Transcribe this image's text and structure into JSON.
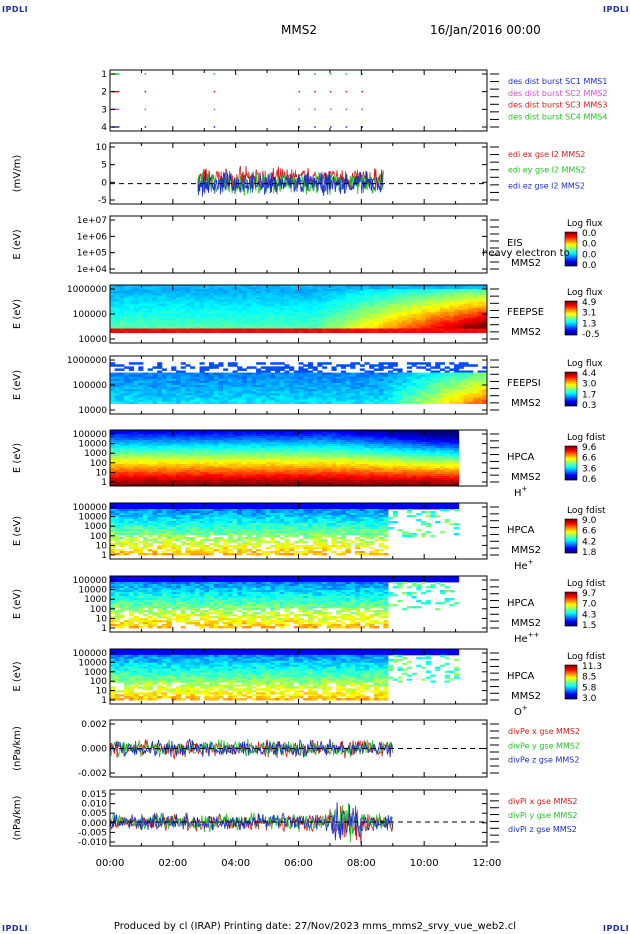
{
  "header": {
    "corner_label": "IPDLI",
    "spacecraft": "MMS2",
    "date": "16/Jan/2016 00:00"
  },
  "footer": "Produced by cl (IRAP)   Printing date: 27/Nov/2023   mms_mms2_srvy_vue_web2.cl",
  "chart_data": [
    {
      "type": "scatter",
      "id": "burst",
      "ylabel": "",
      "yticks": [
        "1",
        "2",
        "3",
        "4"
      ],
      "legend": [
        {
          "label": "des dist burst SC1 MMS1",
          "color": "#1c2fc8"
        },
        {
          "label": "des dist burst SC2 MMS2",
          "color": "#d24fd2"
        },
        {
          "label": "des dist burst SC3 MMS3",
          "color": "#d21c1c"
        },
        {
          "label": "des dist burst SC4 MMS4",
          "color": "#22c322"
        }
      ]
    },
    {
      "type": "line",
      "id": "efield",
      "ylabel": "(mV/m)",
      "yticks": [
        "10",
        "5",
        "0",
        "-5"
      ],
      "ylim": [
        -5,
        10
      ],
      "legend": [
        {
          "label": "edi ex gse l2 MMS2",
          "color": "#d21c1c"
        },
        {
          "label": "edi ey gse l2 MMS2",
          "color": "#22c322"
        },
        {
          "label": "edi ez gse l2 MMS2",
          "color": "#1c2fc8"
        }
      ]
    },
    {
      "type": "heatmap",
      "id": "eis",
      "ylabel": "E (eV)",
      "yticks": [
        "1e+07",
        "1e+06",
        "1e+05",
        "1e+04"
      ],
      "instrument": [
        "EIS",
        "MMS2"
      ],
      "overlay": "heavy electron to",
      "colorbar_title": "Log flux",
      "colorbar_ticks": [
        "0.0",
        "0.0",
        "0.0",
        "0.0"
      ]
    },
    {
      "type": "heatmap",
      "id": "feepse",
      "ylabel": "E (eV)",
      "yticks": [
        "1000000",
        "100000",
        "10000"
      ],
      "instrument": [
        "FEEPSE",
        "MMS2"
      ],
      "colorbar_title": "Log flux",
      "colorbar_ticks": [
        "4.9",
        "3.1",
        "1.3",
        "-0.5"
      ]
    },
    {
      "type": "heatmap",
      "id": "feepsi",
      "ylabel": "E (eV)",
      "yticks": [
        "1000000",
        "100000",
        "10000"
      ],
      "instrument": [
        "FEEPSI",
        "MMS2"
      ],
      "colorbar_title": "Log flux",
      "colorbar_ticks": [
        "4.4",
        "3.0",
        "1.7",
        "0.3"
      ]
    },
    {
      "type": "heatmap",
      "id": "hpca_h",
      "ylabel": "E (eV)",
      "yticks": [
        "100000",
        "10000",
        "1000",
        "100",
        "10",
        "1"
      ],
      "instrument": [
        "HPCA",
        "MMS2"
      ],
      "species": "H",
      "species_sup": "+",
      "colorbar_title": "Log fdist",
      "colorbar_ticks": [
        "9.6",
        "6.6",
        "3.6",
        "0.6"
      ]
    },
    {
      "type": "heatmap",
      "id": "hpca_he1",
      "ylabel": "E (eV)",
      "yticks": [
        "100000",
        "10000",
        "1000",
        "100",
        "10",
        "1"
      ],
      "instrument": [
        "HPCA",
        "MMS2"
      ],
      "species": "He",
      "species_sup": "+",
      "colorbar_title": "Log fdist",
      "colorbar_ticks": [
        "9.0",
        "6.6",
        "4.2",
        "1.8"
      ]
    },
    {
      "type": "heatmap",
      "id": "hpca_he2",
      "ylabel": "E (eV)",
      "yticks": [
        "100000",
        "10000",
        "1000",
        "100",
        "10",
        "1"
      ],
      "instrument": [
        "HPCA",
        "MMS2"
      ],
      "species": "He",
      "species_sup": "++",
      "colorbar_title": "Log fdist",
      "colorbar_ticks": [
        "9.7",
        "7.0",
        "4.3",
        "1.5"
      ]
    },
    {
      "type": "heatmap",
      "id": "hpca_o",
      "ylabel": "E (eV)",
      "yticks": [
        "100000",
        "10000",
        "1000",
        "100",
        "10",
        "1"
      ],
      "instrument": [
        "HPCA",
        "MMS2"
      ],
      "species": "O",
      "species_sup": "+",
      "colorbar_title": "Log fdist",
      "colorbar_ticks": [
        "11.3",
        "8.5",
        "5.8",
        "3.0"
      ]
    },
    {
      "type": "line",
      "id": "divpe",
      "ylabel": "(nPa/km)",
      "yticks": [
        "0.002",
        "0.000",
        "-0.002"
      ],
      "ylim": [
        -0.003,
        0.003
      ],
      "legend": [
        {
          "label": "divPe x gse MMS2",
          "color": "#d21c1c"
        },
        {
          "label": "divPe y gse MMS2",
          "color": "#22c322"
        },
        {
          "label": "divPe z gse MMS2",
          "color": "#1c2fc8"
        }
      ]
    },
    {
      "type": "line",
      "id": "divpi",
      "ylabel": "(nPa/km)",
      "yticks": [
        "0.015",
        "0.010",
        "0.005",
        "0.000",
        "-0.005",
        "-0.010"
      ],
      "ylim": [
        -0.012,
        0.016
      ],
      "legend": [
        {
          "label": "divPi x gse MMS2",
          "color": "#d21c1c"
        },
        {
          "label": "divPi y gse MMS2",
          "color": "#22c322"
        },
        {
          "label": "divPi z gse MMS2",
          "color": "#1c2fc8"
        }
      ]
    }
  ],
  "xaxis": {
    "ticks": [
      "00:00",
      "02:00",
      "04:00",
      "06:00",
      "08:00",
      "10:00",
      "12:00"
    ],
    "range_hours": [
      0,
      12
    ]
  }
}
